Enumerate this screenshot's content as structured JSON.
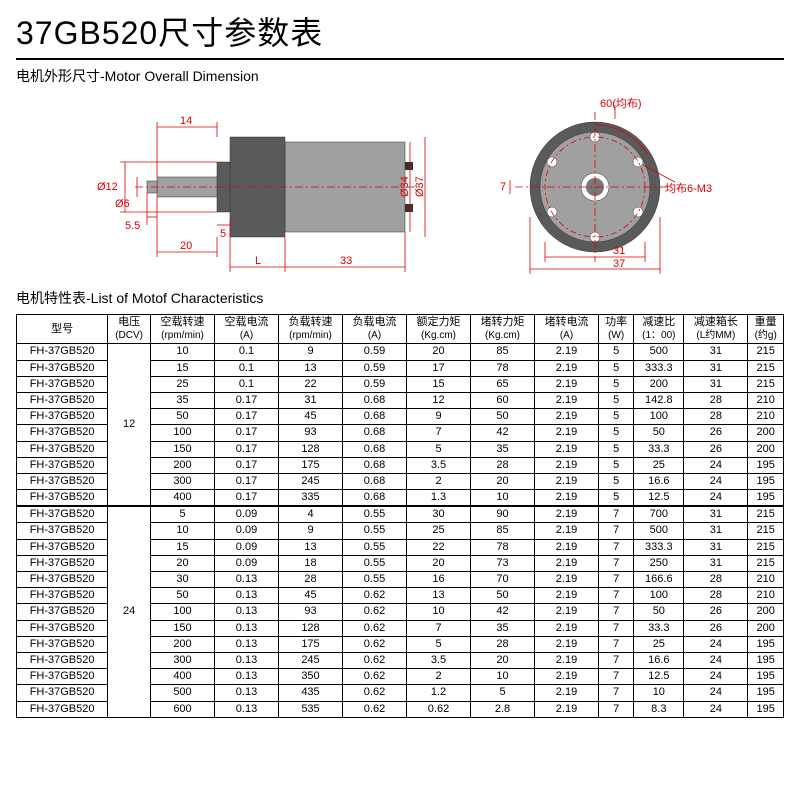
{
  "title": "37GB520尺寸参数表",
  "section1": "电机外形尺寸-Motor Overall Dimension",
  "section2": "电机特性表-List of Motof Characteristics",
  "dims": {
    "d14": "14",
    "d12": "Ø12",
    "d6": "Ø6",
    "d5_5": "5.5",
    "d5": "5",
    "d20": "20",
    "dL": "L",
    "d33": "33",
    "d34": "Ø34",
    "d37": "Ø37",
    "d60": "60(均布)",
    "d7": "7",
    "d31": "31",
    "d37b": "37",
    "m3": "均布6-M3"
  },
  "headers": [
    {
      "l1": "型号",
      "l2": ""
    },
    {
      "l1": "电压",
      "l2": "(DCV)"
    },
    {
      "l1": "空载转速",
      "l2": "(rpm/min)"
    },
    {
      "l1": "空载电流",
      "l2": "(A)"
    },
    {
      "l1": "负载转速",
      "l2": "(rpm/min)"
    },
    {
      "l1": "负载电流",
      "l2": "(A)"
    },
    {
      "l1": "额定力矩",
      "l2": "(Kg.cm)"
    },
    {
      "l1": "堵转力矩",
      "l2": "(Kg.cm)"
    },
    {
      "l1": "堵转电流",
      "l2": "(A)"
    },
    {
      "l1": "功率",
      "l2": "(W)"
    },
    {
      "l1": "减速比",
      "l2": "(1：00)"
    },
    {
      "l1": "减速箱长",
      "l2": "(L约MM)"
    },
    {
      "l1": "重量",
      "l2": "(约g)"
    }
  ],
  "groups": [
    {
      "voltage": "12",
      "rows": [
        [
          "FH-37GB520",
          "10",
          "0.1",
          "9",
          "0.59",
          "20",
          "85",
          "2.19",
          "5",
          "500",
          "31",
          "215"
        ],
        [
          "FH-37GB520",
          "15",
          "0.1",
          "13",
          "0.59",
          "17",
          "78",
          "2.19",
          "5",
          "333.3",
          "31",
          "215"
        ],
        [
          "FH-37GB520",
          "25",
          "0.1",
          "22",
          "0.59",
          "15",
          "65",
          "2.19",
          "5",
          "200",
          "31",
          "215"
        ],
        [
          "FH-37GB520",
          "35",
          "0.17",
          "31",
          "0.68",
          "12",
          "60",
          "2.19",
          "5",
          "142.8",
          "28",
          "210"
        ],
        [
          "FH-37GB520",
          "50",
          "0.17",
          "45",
          "0.68",
          "9",
          "50",
          "2.19",
          "5",
          "100",
          "28",
          "210"
        ],
        [
          "FH-37GB520",
          "100",
          "0.17",
          "93",
          "0.68",
          "7",
          "42",
          "2.19",
          "5",
          "50",
          "26",
          "200"
        ],
        [
          "FH-37GB520",
          "150",
          "0.17",
          "128",
          "0.68",
          "5",
          "35",
          "2.19",
          "5",
          "33.3",
          "26",
          "200"
        ],
        [
          "FH-37GB520",
          "200",
          "0.17",
          "175",
          "0.68",
          "3.5",
          "28",
          "2.19",
          "5",
          "25",
          "24",
          "195"
        ],
        [
          "FH-37GB520",
          "300",
          "0.17",
          "245",
          "0.68",
          "2",
          "20",
          "2.19",
          "5",
          "16.6",
          "24",
          "195"
        ],
        [
          "FH-37GB520",
          "400",
          "0.17",
          "335",
          "0.68",
          "1.3",
          "10",
          "2.19",
          "5",
          "12.5",
          "24",
          "195"
        ]
      ]
    },
    {
      "voltage": "24",
      "rows": [
        [
          "FH-37GB520",
          "5",
          "0.09",
          "4",
          "0.55",
          "30",
          "90",
          "2.19",
          "7",
          "700",
          "31",
          "215"
        ],
        [
          "FH-37GB520",
          "10",
          "0.09",
          "9",
          "0.55",
          "25",
          "85",
          "2.19",
          "7",
          "500",
          "31",
          "215"
        ],
        [
          "FH-37GB520",
          "15",
          "0.09",
          "13",
          "0.55",
          "22",
          "78",
          "2.19",
          "7",
          "333.3",
          "31",
          "215"
        ],
        [
          "FH-37GB520",
          "20",
          "0.09",
          "18",
          "0.55",
          "20",
          "73",
          "2.19",
          "7",
          "250",
          "31",
          "215"
        ],
        [
          "FH-37GB520",
          "30",
          "0.13",
          "28",
          "0.55",
          "16",
          "70",
          "2.19",
          "7",
          "166.6",
          "28",
          "210"
        ],
        [
          "FH-37GB520",
          "50",
          "0.13",
          "45",
          "0.62",
          "13",
          "50",
          "2.19",
          "7",
          "100",
          "28",
          "210"
        ],
        [
          "FH-37GB520",
          "100",
          "0.13",
          "93",
          "0.62",
          "10",
          "42",
          "2.19",
          "7",
          "50",
          "26",
          "200"
        ],
        [
          "FH-37GB520",
          "150",
          "0.13",
          "128",
          "0.62",
          "7",
          "35",
          "2.19",
          "7",
          "33.3",
          "26",
          "200"
        ],
        [
          "FH-37GB520",
          "200",
          "0.13",
          "175",
          "0.62",
          "5",
          "28",
          "2.19",
          "7",
          "25",
          "24",
          "195"
        ],
        [
          "FH-37GB520",
          "300",
          "0.13",
          "245",
          "0.62",
          "3.5",
          "20",
          "2.19",
          "7",
          "16.6",
          "24",
          "195"
        ],
        [
          "FH-37GB520",
          "400",
          "0.13",
          "350",
          "0.62",
          "2",
          "10",
          "2.19",
          "7",
          "12.5",
          "24",
          "195"
        ],
        [
          "FH-37GB520",
          "500",
          "0.13",
          "435",
          "0.62",
          "1.2",
          "5",
          "2.19",
          "7",
          "10",
          "24",
          "195"
        ],
        [
          "FH-37GB520",
          "600",
          "0.13",
          "535",
          "0.62",
          "0.62",
          "2.8",
          "2.19",
          "7",
          "8.3",
          "24",
          "195"
        ]
      ]
    }
  ]
}
